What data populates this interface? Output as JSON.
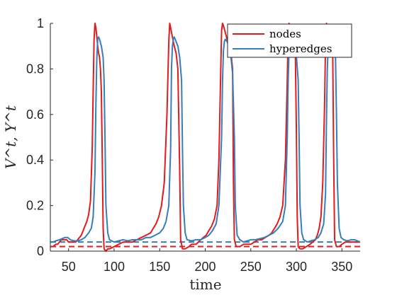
{
  "chart_data": {
    "type": "line",
    "xlabel": "time",
    "ylabel": "V^t, Y^t",
    "xlim": [
      30,
      370
    ],
    "ylim": [
      0,
      1
    ],
    "xticks": [
      50,
      100,
      150,
      200,
      250,
      300,
      350
    ],
    "yticks": [
      0,
      0.2,
      0.4,
      0.6,
      0.8,
      1
    ],
    "xtick_labels": [
      "50",
      "100",
      "150",
      "200",
      "250",
      "300",
      "350"
    ],
    "ytick_labels": [
      "0",
      "0.2",
      "0.4",
      "0.6",
      "0.8",
      "1"
    ],
    "legend": {
      "position": "top-right",
      "entries": [
        "nodes",
        "hyperedges"
      ]
    },
    "grid": false,
    "series": [
      {
        "name": "nodes",
        "color": "#e41a1c",
        "points": [
          [
            30,
            0.02
          ],
          [
            33,
            0.02
          ],
          [
            36,
            0.03
          ],
          [
            38,
            0.03
          ],
          [
            40,
            0.04
          ],
          [
            42,
            0.05
          ],
          [
            44,
            0.05
          ],
          [
            46,
            0.05
          ],
          [
            48,
            0.05
          ],
          [
            50,
            0.04
          ],
          [
            53,
            0.04
          ],
          [
            56,
            0.04
          ],
          [
            58,
            0.04
          ],
          [
            60,
            0.05
          ],
          [
            62,
            0.06
          ],
          [
            64,
            0.07
          ],
          [
            66,
            0.09
          ],
          [
            68,
            0.11
          ],
          [
            70,
            0.13
          ],
          [
            72,
            0.16
          ],
          [
            74,
            0.22
          ],
          [
            76,
            0.45
          ],
          [
            77,
            0.7
          ],
          [
            78,
            0.93
          ],
          [
            79,
            1.0
          ],
          [
            80,
            0.98
          ],
          [
            81,
            0.94
          ],
          [
            82,
            0.9
          ],
          [
            83,
            0.87
          ],
          [
            84,
            0.85
          ],
          [
            85,
            0.8
          ],
          [
            86,
            0.7
          ],
          [
            87,
            0.4
          ],
          [
            88,
            0.1
          ],
          [
            89,
            0.01
          ],
          [
            91,
            0.0
          ],
          [
            93,
            0.01
          ],
          [
            95,
            0.01
          ],
          [
            100,
            0.02
          ],
          [
            105,
            0.03
          ],
          [
            110,
            0.04
          ],
          [
            115,
            0.04
          ],
          [
            120,
            0.04
          ],
          [
            125,
            0.05
          ],
          [
            130,
            0.06
          ],
          [
            135,
            0.07
          ],
          [
            140,
            0.08
          ],
          [
            143,
            0.1
          ],
          [
            146,
            0.12
          ],
          [
            149,
            0.15
          ],
          [
            152,
            0.2
          ],
          [
            155,
            0.3
          ],
          [
            158,
            0.6
          ],
          [
            160,
            0.92
          ],
          [
            161,
            1.0
          ],
          [
            162,
            0.98
          ],
          [
            164,
            0.94
          ],
          [
            166,
            0.9
          ],
          [
            168,
            0.87
          ],
          [
            170,
            0.8
          ],
          [
            172,
            0.35
          ],
          [
            173,
            0.05
          ],
          [
            175,
            0.01
          ],
          [
            178,
            0.01
          ],
          [
            182,
            0.02
          ],
          [
            185,
            0.03
          ],
          [
            190,
            0.03
          ],
          [
            195,
            0.05
          ],
          [
            198,
            0.06
          ],
          [
            201,
            0.07
          ],
          [
            204,
            0.09
          ],
          [
            207,
            0.11
          ],
          [
            210,
            0.14
          ],
          [
            213,
            0.2
          ],
          [
            215,
            0.4
          ],
          [
            217,
            0.8
          ],
          [
            218,
            0.97
          ],
          [
            219,
            1.0
          ],
          [
            220,
            0.99
          ],
          [
            222,
            0.96
          ],
          [
            224,
            0.93
          ],
          [
            226,
            0.92
          ],
          [
            228,
            0.88
          ],
          [
            230,
            0.8
          ],
          [
            231,
            0.3
          ],
          [
            232,
            0.05
          ],
          [
            234,
            0.02
          ],
          [
            238,
            0.02
          ],
          [
            242,
            0.03
          ],
          [
            246,
            0.03
          ],
          [
            250,
            0.03
          ],
          [
            254,
            0.04
          ],
          [
            258,
            0.05
          ],
          [
            262,
            0.05
          ],
          [
            266,
            0.06
          ],
          [
            270,
            0.07
          ],
          [
            273,
            0.08
          ],
          [
            276,
            0.1
          ],
          [
            279,
            0.12
          ],
          [
            282,
            0.15
          ],
          [
            285,
            0.2
          ],
          [
            288,
            0.4
          ],
          [
            290,
            0.75
          ],
          [
            291,
            0.95
          ],
          [
            292,
            1.0
          ],
          [
            294,
            0.98
          ],
          [
            296,
            0.95
          ],
          [
            298,
            0.9
          ],
          [
            299,
            0.85
          ],
          [
            300,
            0.55
          ],
          [
            301,
            0.15
          ],
          [
            302,
            0.02
          ],
          [
            304,
            0.01
          ],
          [
            307,
            0.01
          ],
          [
            311,
            0.02
          ],
          [
            315,
            0.03
          ],
          [
            318,
            0.04
          ],
          [
            321,
            0.05
          ],
          [
            323,
            0.07
          ],
          [
            325,
            0.1
          ],
          [
            327,
            0.15
          ],
          [
            329,
            0.3
          ],
          [
            331,
            0.65
          ],
          [
            332,
            0.92
          ],
          [
            333,
            1.0
          ],
          [
            335,
            0.98
          ],
          [
            337,
            0.95
          ],
          [
            339,
            0.9
          ],
          [
            340,
            0.85
          ],
          [
            341,
            0.4
          ],
          [
            342,
            0.05
          ],
          [
            344,
            0.02
          ],
          [
            347,
            0.02
          ],
          [
            350,
            0.03
          ],
          [
            354,
            0.04
          ],
          [
            358,
            0.04
          ],
          [
            362,
            0.04
          ],
          [
            366,
            0.04
          ],
          [
            370,
            0.04
          ]
        ],
        "baseline": 0.02
      },
      {
        "name": "hyperedges",
        "color": "#377eb8",
        "points": [
          [
            30,
            0.04
          ],
          [
            33,
            0.04
          ],
          [
            36,
            0.045
          ],
          [
            40,
            0.05
          ],
          [
            43,
            0.055
          ],
          [
            46,
            0.06
          ],
          [
            49,
            0.06
          ],
          [
            52,
            0.05
          ],
          [
            56,
            0.045
          ],
          [
            60,
            0.045
          ],
          [
            64,
            0.05
          ],
          [
            68,
            0.06
          ],
          [
            72,
            0.08
          ],
          [
            75,
            0.1
          ],
          [
            77,
            0.15
          ],
          [
            79,
            0.35
          ],
          [
            80,
            0.65
          ],
          [
            81,
            0.85
          ],
          [
            82,
            0.93
          ],
          [
            83,
            0.94
          ],
          [
            84,
            0.93
          ],
          [
            86,
            0.9
          ],
          [
            88,
            0.85
          ],
          [
            89,
            0.75
          ],
          [
            90,
            0.5
          ],
          [
            91,
            0.2
          ],
          [
            93,
            0.08
          ],
          [
            95,
            0.05
          ],
          [
            100,
            0.04
          ],
          [
            105,
            0.045
          ],
          [
            110,
            0.05
          ],
          [
            115,
            0.045
          ],
          [
            120,
            0.05
          ],
          [
            125,
            0.05
          ],
          [
            130,
            0.05
          ],
          [
            135,
            0.06
          ],
          [
            140,
            0.06
          ],
          [
            145,
            0.07
          ],
          [
            150,
            0.08
          ],
          [
            154,
            0.1
          ],
          [
            157,
            0.13
          ],
          [
            160,
            0.2
          ],
          [
            162,
            0.45
          ],
          [
            163,
            0.8
          ],
          [
            164,
            0.9
          ],
          [
            165,
            0.93
          ],
          [
            166,
            0.94
          ],
          [
            168,
            0.92
          ],
          [
            170,
            0.9
          ],
          [
            172,
            0.85
          ],
          [
            174,
            0.75
          ],
          [
            175,
            0.45
          ],
          [
            176,
            0.2
          ],
          [
            178,
            0.08
          ],
          [
            180,
            0.05
          ],
          [
            185,
            0.045
          ],
          [
            190,
            0.05
          ],
          [
            195,
            0.05
          ],
          [
            200,
            0.06
          ],
          [
            204,
            0.07
          ],
          [
            208,
            0.09
          ],
          [
            212,
            0.12
          ],
          [
            215,
            0.2
          ],
          [
            218,
            0.5
          ],
          [
            219,
            0.75
          ],
          [
            220,
            0.88
          ],
          [
            221,
            0.92
          ],
          [
            222,
            0.93
          ],
          [
            224,
            0.92
          ],
          [
            226,
            0.9
          ],
          [
            228,
            0.86
          ],
          [
            230,
            0.78
          ],
          [
            232,
            0.5
          ],
          [
            233,
            0.2
          ],
          [
            235,
            0.07
          ],
          [
            238,
            0.05
          ],
          [
            242,
            0.04
          ],
          [
            246,
            0.045
          ],
          [
            250,
            0.05
          ],
          [
            255,
            0.05
          ],
          [
            260,
            0.055
          ],
          [
            265,
            0.06
          ],
          [
            270,
            0.07
          ],
          [
            275,
            0.08
          ],
          [
            280,
            0.1
          ],
          [
            285,
            0.13
          ],
          [
            288,
            0.2
          ],
          [
            290,
            0.5
          ],
          [
            291,
            0.75
          ],
          [
            292,
            0.88
          ],
          [
            294,
            0.92
          ],
          [
            296,
            0.92
          ],
          [
            298,
            0.9
          ],
          [
            300,
            0.86
          ],
          [
            302,
            0.75
          ],
          [
            303,
            0.5
          ],
          [
            304,
            0.2
          ],
          [
            306,
            0.08
          ],
          [
            308,
            0.05
          ],
          [
            312,
            0.04
          ],
          [
            316,
            0.045
          ],
          [
            320,
            0.05
          ],
          [
            324,
            0.06
          ],
          [
            327,
            0.08
          ],
          [
            330,
            0.12
          ],
          [
            332,
            0.25
          ],
          [
            333,
            0.55
          ],
          [
            334,
            0.8
          ],
          [
            335,
            0.9
          ],
          [
            337,
            0.92
          ],
          [
            339,
            0.92
          ],
          [
            341,
            0.9
          ],
          [
            343,
            0.85
          ],
          [
            344,
            0.6
          ],
          [
            345,
            0.3
          ],
          [
            347,
            0.1
          ],
          [
            349,
            0.06
          ],
          [
            352,
            0.05
          ],
          [
            356,
            0.045
          ],
          [
            360,
            0.05
          ],
          [
            364,
            0.05
          ],
          [
            367,
            0.045
          ],
          [
            370,
            0.04
          ]
        ],
        "baseline": 0.04
      }
    ]
  },
  "colors": {
    "nodes": "#e41a1c",
    "hyperedges": "#377eb8",
    "axis": "#262626"
  }
}
